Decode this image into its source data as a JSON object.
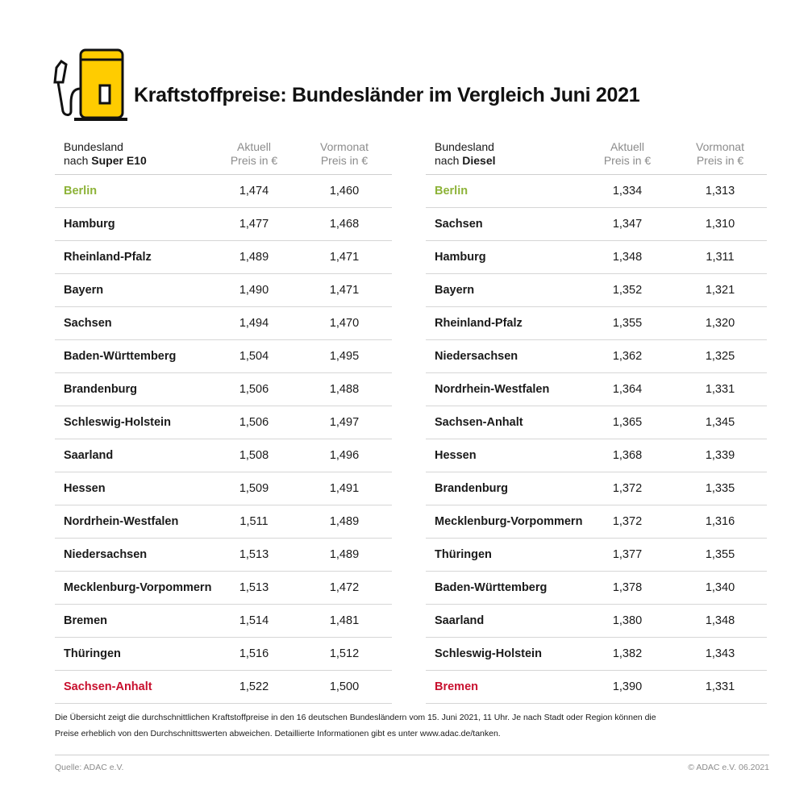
{
  "title": "Kraftstoffpreise: Bundesländer im Vergleich Juni 2021",
  "colors": {
    "accent_yellow": "#ffcc00",
    "best": "#8db338",
    "worst": "#c8102e"
  },
  "icon": "fuel-pump-icon",
  "e10": {
    "header": {
      "line1": "Bundesland",
      "prefix": "nach ",
      "fuel": "Super E10",
      "cur_line1": "Aktuell",
      "cur_line2": "Preis in €",
      "prev_line1": "Vormonat",
      "prev_line2": "Preis in €"
    },
    "rows": [
      {
        "name": "Berlin",
        "cur": "1,474",
        "prev": "1,460"
      },
      {
        "name": "Hamburg",
        "cur": "1,477",
        "prev": "1,468"
      },
      {
        "name": "Rheinland-Pfalz",
        "cur": "1,489",
        "prev": "1,471"
      },
      {
        "name": "Bayern",
        "cur": "1,490",
        "prev": "1,471"
      },
      {
        "name": "Sachsen",
        "cur": "1,494",
        "prev": "1,470"
      },
      {
        "name": "Baden-Württemberg",
        "cur": "1,504",
        "prev": "1,495"
      },
      {
        "name": "Brandenburg",
        "cur": "1,506",
        "prev": "1,488"
      },
      {
        "name": "Schleswig-Holstein",
        "cur": "1,506",
        "prev": "1,497"
      },
      {
        "name": "Saarland",
        "cur": "1,508",
        "prev": "1,496"
      },
      {
        "name": "Hessen",
        "cur": "1,509",
        "prev": "1,491"
      },
      {
        "name": "Nordrhein-Westfalen",
        "cur": "1,511",
        "prev": "1,489"
      },
      {
        "name": "Niedersachsen",
        "cur": "1,513",
        "prev": "1,489"
      },
      {
        "name": "Mecklenburg-Vorpommern",
        "cur": "1,513",
        "prev": "1,472"
      },
      {
        "name": "Bremen",
        "cur": "1,514",
        "prev": "1,481"
      },
      {
        "name": "Thüringen",
        "cur": "1,516",
        "prev": "1,512"
      },
      {
        "name": "Sachsen-Anhalt",
        "cur": "1,522",
        "prev": "1,500"
      }
    ]
  },
  "diesel": {
    "header": {
      "line1": "Bundesland",
      "prefix": "nach ",
      "fuel": "Diesel",
      "cur_line1": "Aktuell",
      "cur_line2": "Preis in €",
      "prev_line1": "Vormonat",
      "prev_line2": "Preis in €"
    },
    "rows": [
      {
        "name": "Berlin",
        "cur": "1,334",
        "prev": "1,313"
      },
      {
        "name": "Sachsen",
        "cur": "1,347",
        "prev": "1,310"
      },
      {
        "name": "Hamburg",
        "cur": "1,348",
        "prev": "1,311"
      },
      {
        "name": "Bayern",
        "cur": "1,352",
        "prev": "1,321"
      },
      {
        "name": "Rheinland-Pfalz",
        "cur": "1,355",
        "prev": "1,320"
      },
      {
        "name": "Niedersachsen",
        "cur": "1,362",
        "prev": "1,325"
      },
      {
        "name": "Nordrhein-Westfalen",
        "cur": "1,364",
        "prev": "1,331"
      },
      {
        "name": "Sachsen-Anhalt",
        "cur": "1,365",
        "prev": "1,345"
      },
      {
        "name": "Hessen",
        "cur": "1,368",
        "prev": "1,339"
      },
      {
        "name": "Brandenburg",
        "cur": "1,372",
        "prev": "1,335"
      },
      {
        "name": "Mecklenburg-Vorpommern",
        "cur": "1,372",
        "prev": "1,316"
      },
      {
        "name": "Thüringen",
        "cur": "1,377",
        "prev": "1,355"
      },
      {
        "name": "Baden-Württemberg",
        "cur": "1,378",
        "prev": "1,340"
      },
      {
        "name": "Saarland",
        "cur": "1,380",
        "prev": "1,348"
      },
      {
        "name": "Schleswig-Holstein",
        "cur": "1,382",
        "prev": "1,343"
      },
      {
        "name": "Bremen",
        "cur": "1,390",
        "prev": "1,331"
      }
    ]
  },
  "note": {
    "line1": "Die Übersicht zeigt die durchschnittlichen Kraftstoffpreise in den 16 deutschen Bundesländern vom 15. Juni 2021, 11 Uhr. Je nach Stadt oder Region können die",
    "line2": "Preise erheblich von den Durchschnittswerten abweichen. Detaillierte Informationen gibt es unter www.adac.de/tanken."
  },
  "source": "Quelle: ADAC e.V.",
  "copyright": "© ADAC e.V. 06.2021"
}
